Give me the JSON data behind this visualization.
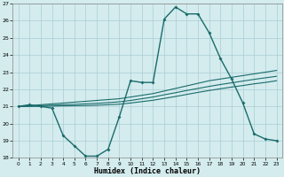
{
  "xlabel": "Humidex (Indice chaleur)",
  "x_values": [
    0,
    1,
    2,
    3,
    4,
    5,
    6,
    7,
    8,
    9,
    10,
    11,
    12,
    13,
    14,
    15,
    16,
    17,
    18,
    19,
    20,
    21,
    22,
    23
  ],
  "curve1": [
    21.0,
    21.1,
    21.0,
    20.9,
    19.3,
    18.7,
    18.1,
    18.1,
    18.5,
    20.4,
    22.5,
    22.4,
    22.4,
    26.1,
    26.8,
    26.4,
    26.4,
    25.3,
    23.8,
    22.6,
    21.2,
    19.4,
    19.1,
    19.0
  ],
  "curve2": [
    21.0,
    21.05,
    21.1,
    21.15,
    21.2,
    21.25,
    21.3,
    21.35,
    21.4,
    21.45,
    21.55,
    21.65,
    21.75,
    21.9,
    22.05,
    22.2,
    22.35,
    22.5,
    22.6,
    22.7,
    22.8,
    22.9,
    23.0,
    23.1
  ],
  "curve3": [
    21.0,
    21.02,
    21.05,
    21.07,
    21.1,
    21.12,
    21.15,
    21.18,
    21.22,
    21.27,
    21.35,
    21.45,
    21.55,
    21.68,
    21.8,
    21.93,
    22.05,
    22.17,
    22.28,
    22.38,
    22.48,
    22.58,
    22.67,
    22.76
  ],
  "curve4": [
    21.0,
    21.0,
    21.01,
    21.02,
    21.03,
    21.04,
    21.05,
    21.07,
    21.1,
    21.13,
    21.2,
    21.28,
    21.36,
    21.47,
    21.58,
    21.7,
    21.82,
    21.93,
    22.03,
    22.13,
    22.22,
    22.32,
    22.4,
    22.5
  ],
  "color": "#1a6b6b",
  "bg_color": "#d4ecee",
  "grid_color": "#aacdd4",
  "ylim": [
    18,
    27
  ],
  "xlim": [
    -0.5,
    23.5
  ],
  "yticks": [
    18,
    19,
    20,
    21,
    22,
    23,
    24,
    25,
    26,
    27
  ],
  "xticks": [
    0,
    1,
    2,
    3,
    4,
    5,
    6,
    7,
    8,
    9,
    10,
    11,
    12,
    13,
    14,
    15,
    16,
    17,
    18,
    19,
    20,
    21,
    22,
    23
  ]
}
